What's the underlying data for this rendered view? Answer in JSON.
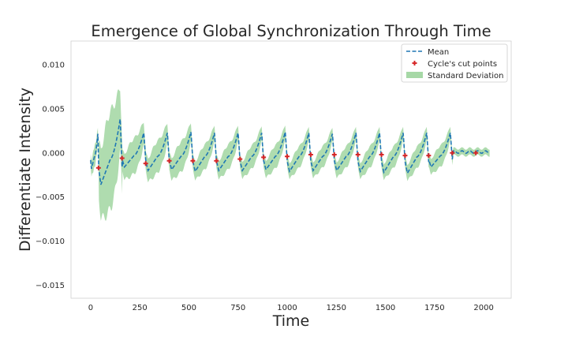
{
  "chart_data": {
    "type": "line",
    "title": "Emergence of Global Synchronization Through Time",
    "xlabel": "Time",
    "ylabel": "Differentiate Intensity",
    "xlim": [
      -100,
      2140
    ],
    "ylim": [
      -0.0165,
      0.0127
    ],
    "xticks": [
      0,
      250,
      500,
      750,
      1000,
      1250,
      1500,
      1750,
      2000
    ],
    "xtick_labels": [
      "0",
      "250",
      "500",
      "750",
      "1000",
      "1250",
      "1500",
      "1750",
      "2000"
    ],
    "yticks": [
      -0.015,
      -0.01,
      -0.005,
      0.0,
      0.005,
      0.01
    ],
    "ytick_labels": [
      "−0.015",
      "−0.010",
      "−0.005",
      "0.000",
      "0.005",
      "0.010"
    ],
    "grid": false,
    "legend_position": "upper right",
    "legend": [
      "Mean",
      "Cycle's cut points",
      "Standard Deviation"
    ],
    "colors": {
      "mean": "#1f77b4",
      "cut_points": "#d62728",
      "std_band": "#a6d8a6"
    },
    "cycles": [
      {
        "start": 0,
        "end": 40,
        "peak": 0.0022,
        "trough": -0.0018,
        "sd": 0.0012
      },
      {
        "start": 40,
        "end": 160,
        "peak": 0.0039,
        "trough": -0.0036,
        "sd": 0.0055
      },
      {
        "start": 160,
        "end": 280,
        "peak": 0.0023,
        "trough": -0.0016,
        "sd": 0.002
      },
      {
        "start": 280,
        "end": 400,
        "peak": 0.0023,
        "trough": -0.002,
        "sd": 0.0018
      },
      {
        "start": 400,
        "end": 520,
        "peak": 0.0024,
        "trough": -0.0019,
        "sd": 0.0017
      },
      {
        "start": 520,
        "end": 640,
        "peak": 0.0023,
        "trough": -0.0021,
        "sd": 0.0014
      },
      {
        "start": 640,
        "end": 760,
        "peak": 0.0023,
        "trough": -0.002,
        "sd": 0.0014
      },
      {
        "start": 760,
        "end": 880,
        "peak": 0.0023,
        "trough": -0.002,
        "sd": 0.0013
      },
      {
        "start": 880,
        "end": 1000,
        "peak": 0.0024,
        "trough": -0.0019,
        "sd": 0.0013
      },
      {
        "start": 1000,
        "end": 1120,
        "peak": 0.0023,
        "trough": -0.0021,
        "sd": 0.0012
      },
      {
        "start": 1120,
        "end": 1240,
        "peak": 0.0022,
        "trough": -0.002,
        "sd": 0.0012
      },
      {
        "start": 1240,
        "end": 1360,
        "peak": 0.0023,
        "trough": -0.002,
        "sd": 0.0012
      },
      {
        "start": 1360,
        "end": 1480,
        "peak": 0.0023,
        "trough": -0.0021,
        "sd": 0.0012
      },
      {
        "start": 1480,
        "end": 1600,
        "peak": 0.0023,
        "trough": -0.0022,
        "sd": 0.0012
      },
      {
        "start": 1600,
        "end": 1720,
        "peak": 0.0023,
        "trough": -0.0023,
        "sd": 0.0012
      },
      {
        "start": 1720,
        "end": 1840,
        "peak": 0.0023,
        "trough": -0.0016,
        "sd": 0.0012
      }
    ],
    "flat_segment": {
      "start": 1840,
      "end": 2030,
      "value": 0.0001,
      "sd": 0.0004
    },
    "cut_points": [
      {
        "x": 40,
        "y": -0.0017
      },
      {
        "x": 160,
        "y": -0.0006
      },
      {
        "x": 280,
        "y": -0.0012
      },
      {
        "x": 400,
        "y": -0.0009
      },
      {
        "x": 520,
        "y": -0.0009
      },
      {
        "x": 640,
        "y": -0.0009
      },
      {
        "x": 760,
        "y": -0.0007
      },
      {
        "x": 880,
        "y": -0.0005
      },
      {
        "x": 1000,
        "y": -0.0004
      },
      {
        "x": 1120,
        "y": -0.0002
      },
      {
        "x": 1240,
        "y": -0.0002
      },
      {
        "x": 1360,
        "y": -0.0002
      },
      {
        "x": 1480,
        "y": -0.0002
      },
      {
        "x": 1600,
        "y": -0.0003
      },
      {
        "x": 1720,
        "y": -0.0003
      },
      {
        "x": 1840,
        "y": 0.0
      },
      {
        "x": 1960,
        "y": 0.0
      }
    ]
  }
}
